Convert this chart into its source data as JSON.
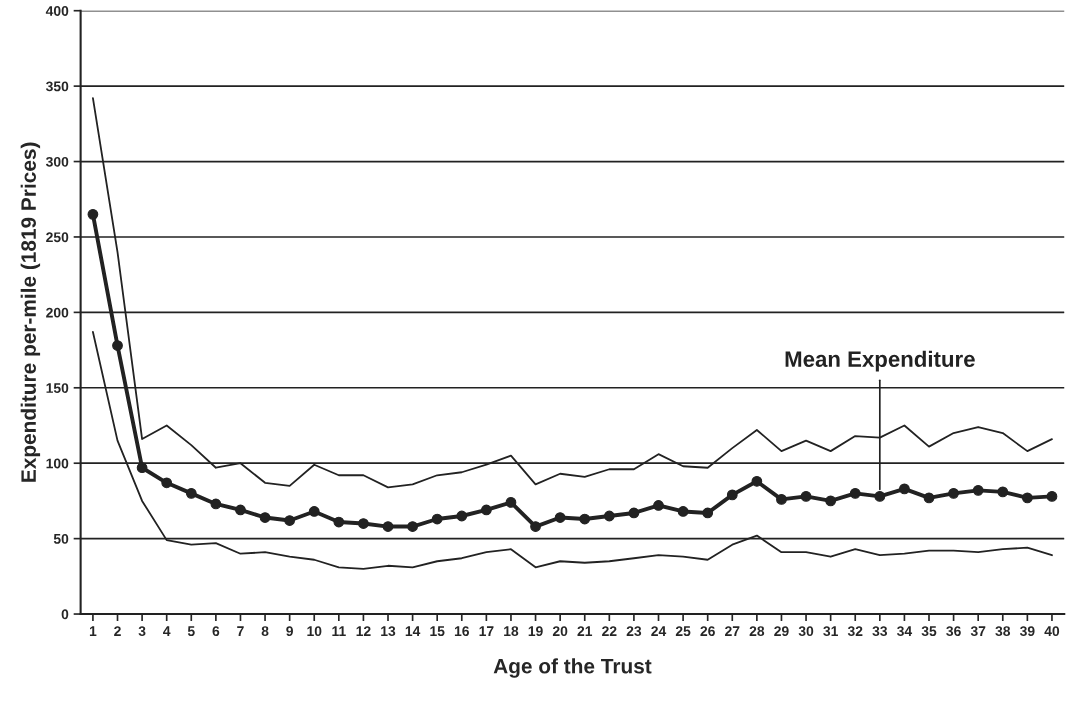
{
  "chart_data": {
    "type": "line",
    "xlabel": "Age of the Trust",
    "ylabel": "Expenditure per-mile (1819 Prices)",
    "categories": [
      "1",
      "2",
      "3",
      "4",
      "5",
      "6",
      "7",
      "8",
      "9",
      "10",
      "11",
      "12",
      "13",
      "14",
      "15",
      "16",
      "17",
      "18",
      "19",
      "20",
      "21",
      "22",
      "23",
      "24",
      "25",
      "26",
      "27",
      "28",
      "29",
      "30",
      "31",
      "32",
      "33",
      "34",
      "35",
      "36",
      "37",
      "38",
      "39",
      "40"
    ],
    "series": [
      {
        "color": "#222222",
        "marker": "none",
        "values": [
          342,
          240,
          116,
          125,
          112,
          97,
          100,
          87,
          85,
          99,
          92,
          92,
          84,
          86,
          92,
          94,
          99,
          105,
          86,
          93,
          91,
          96,
          96,
          106,
          98,
          97,
          110,
          122,
          108,
          115,
          108,
          118,
          117,
          125,
          111,
          120,
          124,
          120,
          108,
          116
        ]
      },
      {
        "color": "#222222",
        "marker": "circle",
        "values": [
          265,
          178,
          97,
          87,
          80,
          73,
          69,
          64,
          62,
          68,
          61,
          60,
          58,
          58,
          63,
          65,
          69,
          74,
          58,
          64,
          63,
          65,
          67,
          72,
          68,
          67,
          79,
          88,
          76,
          78,
          75,
          80,
          78,
          83,
          77,
          80,
          82,
          81,
          77,
          78
        ]
      },
      {
        "color": "#222222",
        "marker": "none",
        "values": [
          187,
          115,
          75,
          49,
          46,
          47,
          40,
          41,
          38,
          36,
          31,
          30,
          32,
          31,
          35,
          37,
          41,
          43,
          31,
          35,
          34,
          35,
          37,
          39,
          38,
          36,
          46,
          52,
          41,
          41,
          38,
          43,
          39,
          40,
          42,
          42,
          41,
          43,
          44,
          39
        ]
      }
    ],
    "ylim": [
      0,
      400
    ],
    "yticks": [
      0,
      50,
      100,
      150,
      200,
      250,
      300,
      350,
      400
    ],
    "grid": "y",
    "legend": false,
    "annotations": [
      {
        "text": "Mean Expenditure",
        "x": "33",
        "y": 78
      }
    ]
  }
}
